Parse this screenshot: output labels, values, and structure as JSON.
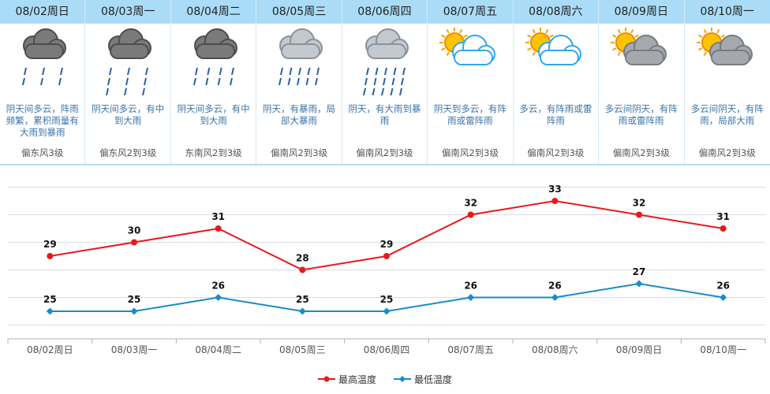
{
  "forecast": [
    {
      "date": "08/02周日",
      "icon": "thundershower-icon",
      "desc": "阴天间多云，阵雨频繁，累积雨量有大雨到暴雨",
      "wind": "偏东风3级"
    },
    {
      "date": "08/03周一",
      "icon": "heavy-rain-icon",
      "desc": "阴天间多云，有中到大雨",
      "wind": "偏东风2到3级"
    },
    {
      "date": "08/04周二",
      "icon": "moderate-rain-icon",
      "desc": "阴天间多云，有中到大雨",
      "wind": "东南风2到3级"
    },
    {
      "date": "08/05周三",
      "icon": "rainstorm-icon",
      "desc": "阴天，有暴雨，局部大暴雨",
      "wind": "偏南风2到3级"
    },
    {
      "date": "08/06周四",
      "icon": "heavy-rainstorm-icon",
      "desc": "阴天，有大雨到暴雨",
      "wind": "偏南风2到3级"
    },
    {
      "date": "08/07周五",
      "icon": "partly-cloudy-icon",
      "desc": "阴天到多云，有阵雨或雷阵雨",
      "wind": "偏南风2到3级"
    },
    {
      "date": "08/08周六",
      "icon": "partly-cloudy-icon",
      "desc": "多云，有阵雨或雷阵雨",
      "wind": "偏南风2到3级"
    },
    {
      "date": "08/09周日",
      "icon": "cloudy-sun-icon",
      "desc": "多云间阴天，有阵雨或雷阵雨",
      "wind": "偏南风2到3级"
    },
    {
      "date": "08/10周一",
      "icon": "cloudy-sun-icon",
      "desc": "多云间阴天，有阵雨，局部大雨",
      "wind": "偏南风2到3级"
    }
  ],
  "chart_data": {
    "type": "line",
    "categories": [
      "08/02周日",
      "08/03周一",
      "08/04周二",
      "08/05周三",
      "08/06周四",
      "08/07周五",
      "08/08周六",
      "08/09周日",
      "08/10周一"
    ],
    "series": [
      {
        "name": "最高温度",
        "color": "#e8191c",
        "values": [
          29,
          30,
          31,
          28,
          29,
          32,
          33,
          32,
          31
        ]
      },
      {
        "name": "最低温度",
        "color": "#1b8bc6",
        "values": [
          25,
          25,
          26,
          25,
          25,
          26,
          26,
          27,
          26
        ]
      }
    ],
    "ylim": [
      23,
      35
    ],
    "grid": true,
    "legend_position": "bottom-center"
  },
  "colors": {
    "header_bg": "#aadcf7",
    "desc_text": "#3a74a8",
    "grid": "#d8dde3"
  }
}
